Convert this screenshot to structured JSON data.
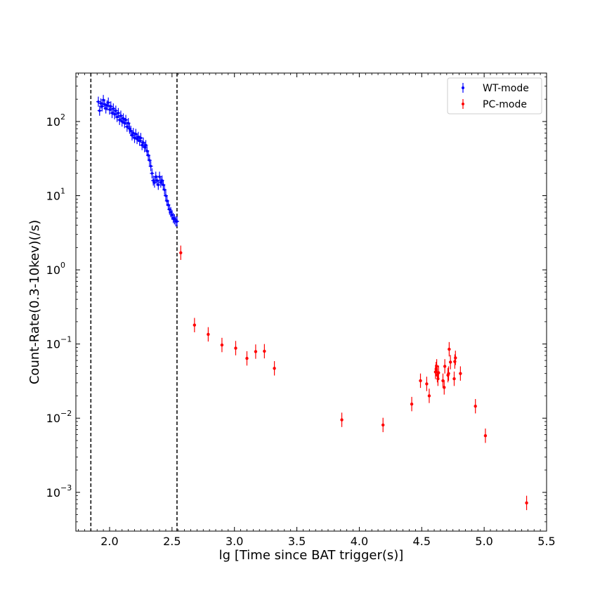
{
  "chart_data": {
    "type": "scatter",
    "xlabel": "lg [Time since BAT trigger(s)]",
    "ylabel": "Count-Rate(0.3-10kev)(/s)",
    "xlim": [
      1.73,
      5.5
    ],
    "ylim": [
      0.0003,
      450
    ],
    "yscale": "log",
    "x_ticks": [
      2.0,
      2.5,
      3.0,
      3.5,
      4.0,
      4.5,
      5.0,
      5.5
    ],
    "x_tick_labels": [
      "2.0",
      "2.5",
      "3.0",
      "3.5",
      "4.0",
      "4.5",
      "5.0",
      "5.5"
    ],
    "y_ticks": [
      0.001,
      0.01,
      0.1,
      1,
      10,
      100
    ],
    "y_tick_labels": [
      {
        "base": "10",
        "exp": "−3"
      },
      {
        "base": "10",
        "exp": "−2"
      },
      {
        "base": "10",
        "exp": "−1"
      },
      {
        "base": "10",
        "exp": "0"
      },
      {
        "base": "10",
        "exp": "1"
      },
      {
        "base": "10",
        "exp": "2"
      }
    ],
    "vlines": [
      1.85,
      2.54
    ],
    "grid": false,
    "legend_position": "top-right",
    "colors": {
      "wt": "#0000ff",
      "pc": "#ff0000",
      "pc_edge": "#cc0000",
      "vline": "#000000"
    },
    "series": [
      {
        "name": "WT-mode",
        "points": [
          [
            1.91,
            185
          ],
          [
            1.92,
            140
          ],
          [
            1.93,
            175
          ],
          [
            1.94,
            160
          ],
          [
            1.95,
            195
          ],
          [
            1.96,
            170
          ],
          [
            1.97,
            150
          ],
          [
            1.98,
            165
          ],
          [
            1.99,
            180
          ],
          [
            2.0,
            145
          ],
          [
            2.01,
            160
          ],
          [
            2.02,
            130
          ],
          [
            2.03,
            150
          ],
          [
            2.04,
            125
          ],
          [
            2.05,
            140
          ],
          [
            2.06,
            115
          ],
          [
            2.07,
            130
          ],
          [
            2.08,
            105
          ],
          [
            2.09,
            120
          ],
          [
            2.1,
            100
          ],
          [
            2.11,
            110
          ],
          [
            2.12,
            95
          ],
          [
            2.13,
            105
          ],
          [
            2.14,
            85
          ],
          [
            2.15,
            95
          ],
          [
            2.16,
            80
          ],
          [
            2.17,
            75
          ],
          [
            2.18,
            65
          ],
          [
            2.19,
            70
          ],
          [
            2.2,
            60
          ],
          [
            2.21,
            68
          ],
          [
            2.22,
            58
          ],
          [
            2.23,
            62
          ],
          [
            2.24,
            55
          ],
          [
            2.25,
            60
          ],
          [
            2.26,
            48
          ],
          [
            2.27,
            52
          ],
          [
            2.28,
            45
          ],
          [
            2.29,
            48
          ],
          [
            2.3,
            40
          ],
          [
            2.31,
            35
          ],
          [
            2.32,
            30
          ],
          [
            2.33,
            25
          ],
          [
            2.34,
            20
          ],
          [
            2.35,
            16
          ],
          [
            2.36,
            15
          ],
          [
            2.37,
            18
          ],
          [
            2.38,
            16
          ],
          [
            2.39,
            14
          ],
          [
            2.4,
            18
          ],
          [
            2.41,
            15
          ],
          [
            2.42,
            16
          ],
          [
            2.43,
            14
          ],
          [
            2.44,
            12
          ],
          [
            2.45,
            10
          ],
          [
            2.46,
            8.5
          ],
          [
            2.47,
            7.5
          ],
          [
            2.48,
            6.5
          ],
          [
            2.49,
            6
          ],
          [
            2.5,
            5.5
          ],
          [
            2.51,
            5
          ],
          [
            2.52,
            4.8
          ],
          [
            2.53,
            4.5
          ],
          [
            2.54,
            4.5
          ]
        ],
        "rel_err": 0.17
      },
      {
        "name": "PC-mode",
        "points": [
          [
            2.57,
            1.7
          ],
          [
            2.68,
            0.18
          ],
          [
            2.79,
            0.135
          ],
          [
            2.9,
            0.097
          ],
          [
            3.01,
            0.088
          ],
          [
            3.1,
            0.064
          ],
          [
            3.17,
            0.079
          ],
          [
            3.24,
            0.08
          ],
          [
            3.32,
            0.047
          ],
          [
            3.86,
            0.0095
          ],
          [
            4.19,
            0.0081
          ],
          [
            4.42,
            0.0155
          ],
          [
            4.49,
            0.032
          ],
          [
            4.54,
            0.029
          ],
          [
            4.56,
            0.02
          ],
          [
            4.61,
            0.042
          ],
          [
            4.615,
            0.046
          ],
          [
            4.62,
            0.05
          ],
          [
            4.625,
            0.038
          ],
          [
            4.63,
            0.034
          ],
          [
            4.635,
            0.041
          ],
          [
            4.67,
            0.032
          ],
          [
            4.68,
            0.026
          ],
          [
            4.685,
            0.05
          ],
          [
            4.71,
            0.038
          ],
          [
            4.715,
            0.04
          ],
          [
            4.72,
            0.085
          ],
          [
            4.73,
            0.057
          ],
          [
            4.76,
            0.034
          ],
          [
            4.765,
            0.058
          ],
          [
            4.77,
            0.065
          ],
          [
            4.81,
            0.04
          ],
          [
            4.93,
            0.0145
          ],
          [
            5.01,
            0.0058
          ],
          [
            5.34,
            0.00072
          ]
        ],
        "rel_err": 0.25
      }
    ]
  }
}
